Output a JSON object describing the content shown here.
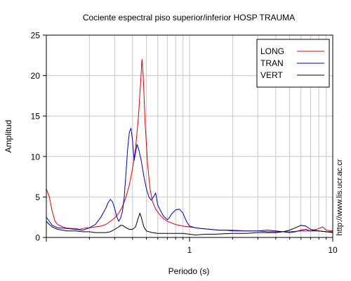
{
  "chart_data": {
    "type": "line",
    "title": "Cociente espectral piso superior/inferior  HOSP TRAUMA",
    "xlabel": "Periodo (s)",
    "ylabel": "Amplitud",
    "x_scale": "log",
    "xlim": [
      0.1,
      10
    ],
    "ylim": [
      0,
      25
    ],
    "yticks": [
      0,
      5,
      10,
      15,
      20,
      25
    ],
    "xtick_labels": [
      {
        "value": 1,
        "label": "1"
      },
      {
        "value": 10,
        "label": "10"
      }
    ],
    "grid": true,
    "legend_position": "top-right",
    "side_text": "http://www.lis.ucr.ac.cr",
    "series": [
      {
        "name": "LONG",
        "color": "#e00000",
        "points": [
          [
            0.1,
            6.0
          ],
          [
            0.105,
            5.0
          ],
          [
            0.11,
            3.2
          ],
          [
            0.115,
            2.0
          ],
          [
            0.12,
            1.6
          ],
          [
            0.13,
            1.3
          ],
          [
            0.14,
            1.15
          ],
          [
            0.15,
            1.1
          ],
          [
            0.16,
            1.1
          ],
          [
            0.17,
            1.0
          ],
          [
            0.18,
            1.1
          ],
          [
            0.19,
            1.2
          ],
          [
            0.2,
            1.2
          ],
          [
            0.22,
            1.3
          ],
          [
            0.24,
            1.4
          ],
          [
            0.26,
            1.6
          ],
          [
            0.28,
            2.0
          ],
          [
            0.3,
            2.4
          ],
          [
            0.32,
            3.0
          ],
          [
            0.34,
            3.8
          ],
          [
            0.36,
            5.0
          ],
          [
            0.38,
            6.5
          ],
          [
            0.4,
            8.5
          ],
          [
            0.42,
            11.0
          ],
          [
            0.44,
            15.0
          ],
          [
            0.455,
            19.0
          ],
          [
            0.465,
            22.0
          ],
          [
            0.475,
            20.0
          ],
          [
            0.49,
            14.0
          ],
          [
            0.51,
            9.0
          ],
          [
            0.53,
            6.0
          ],
          [
            0.55,
            4.5
          ],
          [
            0.58,
            3.5
          ],
          [
            0.62,
            2.8
          ],
          [
            0.66,
            2.3
          ],
          [
            0.7,
            2.0
          ],
          [
            0.75,
            1.8
          ],
          [
            0.8,
            1.6
          ],
          [
            0.9,
            1.4
          ],
          [
            1.0,
            1.3
          ],
          [
            1.1,
            1.2
          ],
          [
            1.2,
            1.1
          ],
          [
            1.4,
            1.0
          ],
          [
            1.6,
            0.9
          ],
          [
            2.0,
            0.9
          ],
          [
            2.5,
            0.8
          ],
          [
            3.0,
            0.8
          ],
          [
            3.5,
            0.7
          ],
          [
            4.0,
            0.7
          ],
          [
            5.0,
            0.7
          ],
          [
            6.0,
            0.8
          ],
          [
            7.0,
            0.8
          ],
          [
            8.0,
            1.1
          ],
          [
            8.5,
            1.3
          ],
          [
            9.0,
            0.9
          ],
          [
            10.0,
            0.8
          ]
        ]
      },
      {
        "name": "TRAN",
        "color": "#0000b4",
        "points": [
          [
            0.1,
            2.5
          ],
          [
            0.105,
            2.0
          ],
          [
            0.11,
            1.5
          ],
          [
            0.12,
            1.2
          ],
          [
            0.14,
            1.1
          ],
          [
            0.16,
            1.0
          ],
          [
            0.18,
            0.9
          ],
          [
            0.2,
            1.2
          ],
          [
            0.22,
            1.6
          ],
          [
            0.24,
            2.5
          ],
          [
            0.26,
            3.6
          ],
          [
            0.27,
            4.3
          ],
          [
            0.28,
            4.7
          ],
          [
            0.29,
            4.4
          ],
          [
            0.3,
            3.6
          ],
          [
            0.31,
            2.6
          ],
          [
            0.32,
            2.0
          ],
          [
            0.33,
            2.4
          ],
          [
            0.34,
            3.2
          ],
          [
            0.35,
            5.0
          ],
          [
            0.36,
            8.0
          ],
          [
            0.37,
            11.0
          ],
          [
            0.38,
            13.0
          ],
          [
            0.39,
            13.5
          ],
          [
            0.4,
            12.0
          ],
          [
            0.41,
            9.5
          ],
          [
            0.42,
            10.5
          ],
          [
            0.43,
            11.5
          ],
          [
            0.44,
            11.0
          ],
          [
            0.46,
            9.5
          ],
          [
            0.48,
            7.5
          ],
          [
            0.5,
            6.0
          ],
          [
            0.52,
            5.0
          ],
          [
            0.54,
            4.6
          ],
          [
            0.56,
            5.0
          ],
          [
            0.58,
            5.5
          ],
          [
            0.6,
            4.0
          ],
          [
            0.62,
            3.5
          ],
          [
            0.64,
            3.0
          ],
          [
            0.66,
            2.6
          ],
          [
            0.68,
            2.4
          ],
          [
            0.7,
            2.2
          ],
          [
            0.72,
            2.4
          ],
          [
            0.75,
            2.9
          ],
          [
            0.8,
            3.4
          ],
          [
            0.85,
            3.5
          ],
          [
            0.9,
            3.0
          ],
          [
            0.95,
            2.0
          ],
          [
            1.0,
            1.4
          ],
          [
            1.1,
            1.2
          ],
          [
            1.2,
            1.1
          ],
          [
            1.4,
            1.0
          ],
          [
            1.6,
            0.9
          ],
          [
            1.8,
            0.9
          ],
          [
            2.0,
            0.8
          ],
          [
            2.5,
            0.8
          ],
          [
            3.0,
            0.8
          ],
          [
            3.5,
            0.9
          ],
          [
            4.0,
            0.8
          ],
          [
            4.5,
            0.7
          ],
          [
            5.0,
            0.6
          ],
          [
            5.5,
            0.7
          ],
          [
            6.0,
            0.9
          ],
          [
            6.5,
            1.0
          ],
          [
            7.0,
            0.8
          ],
          [
            7.5,
            0.8
          ],
          [
            8.0,
            0.8
          ],
          [
            9.0,
            0.7
          ],
          [
            10.0,
            0.7
          ]
        ]
      },
      {
        "name": "VERT",
        "color": "#000000",
        "points": [
          [
            0.1,
            2.0
          ],
          [
            0.105,
            1.6
          ],
          [
            0.11,
            1.3
          ],
          [
            0.12,
            1.0
          ],
          [
            0.14,
            0.8
          ],
          [
            0.16,
            0.8
          ],
          [
            0.18,
            0.7
          ],
          [
            0.2,
            0.7
          ],
          [
            0.22,
            0.6
          ],
          [
            0.24,
            0.6
          ],
          [
            0.26,
            0.6
          ],
          [
            0.28,
            0.7
          ],
          [
            0.3,
            1.0
          ],
          [
            0.32,
            1.3
          ],
          [
            0.33,
            1.5
          ],
          [
            0.34,
            1.5
          ],
          [
            0.36,
            1.2
          ],
          [
            0.38,
            1.0
          ],
          [
            0.4,
            1.0
          ],
          [
            0.42,
            1.3
          ],
          [
            0.44,
            2.5
          ],
          [
            0.45,
            3.0
          ],
          [
            0.46,
            2.5
          ],
          [
            0.48,
            1.3
          ],
          [
            0.5,
            0.8
          ],
          [
            0.55,
            0.6
          ],
          [
            0.6,
            0.5
          ],
          [
            0.7,
            0.5
          ],
          [
            0.8,
            0.5
          ],
          [
            0.9,
            0.5
          ],
          [
            1.0,
            0.4
          ],
          [
            1.1,
            0.3
          ],
          [
            1.3,
            0.4
          ],
          [
            1.5,
            0.4
          ],
          [
            2.0,
            0.5
          ],
          [
            2.5,
            0.5
          ],
          [
            3.0,
            0.6
          ],
          [
            3.5,
            0.6
          ],
          [
            4.0,
            0.6
          ],
          [
            4.5,
            0.7
          ],
          [
            5.0,
            0.9
          ],
          [
            5.5,
            1.2
          ],
          [
            6.0,
            1.5
          ],
          [
            6.5,
            1.4
          ],
          [
            7.0,
            1.0
          ],
          [
            8.0,
            0.8
          ],
          [
            9.0,
            0.7
          ],
          [
            10.0,
            0.6
          ]
        ]
      }
    ]
  }
}
